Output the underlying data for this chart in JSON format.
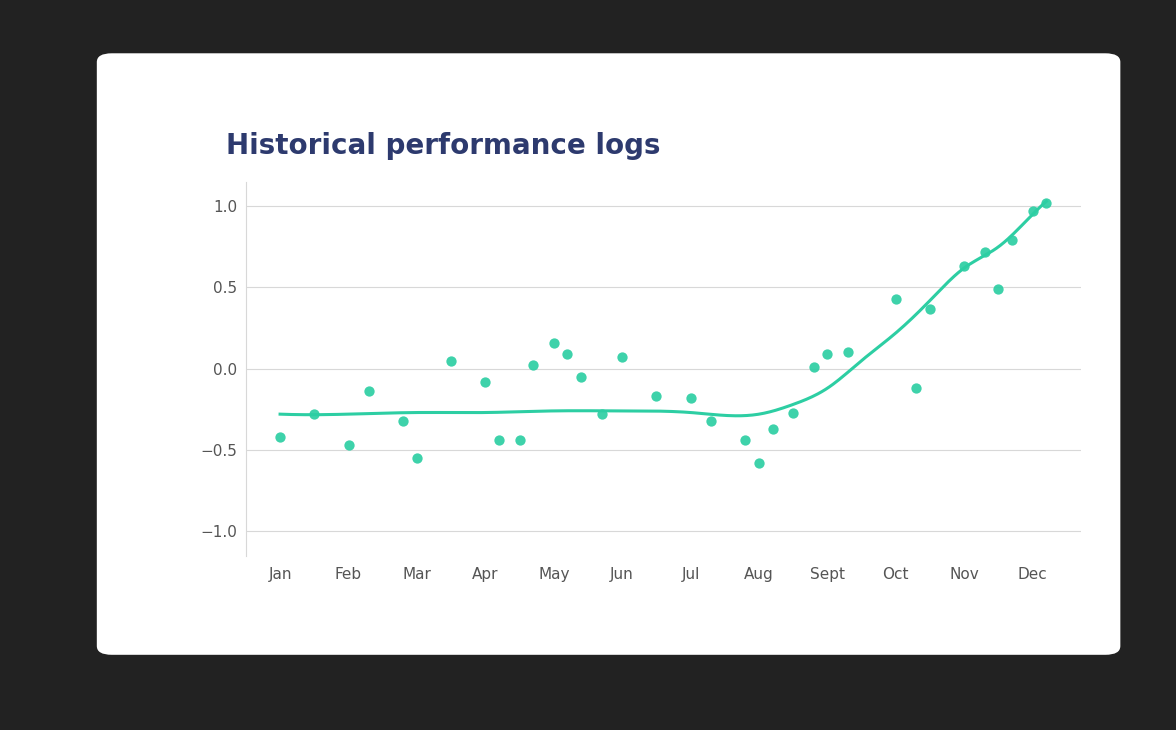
{
  "title": "Historical performance logs",
  "title_color": "#2d3a6e",
  "title_fontsize": 20,
  "title_fontweight": "bold",
  "background_outer": "#222222",
  "background_card": "#ffffff",
  "x_labels": [
    "Jan",
    "Feb",
    "Mar",
    "Apr",
    "May",
    "Jun",
    "Jul",
    "Aug",
    "Sept",
    "Oct",
    "Nov",
    "Dec"
  ],
  "x_positions": [
    1,
    2,
    3,
    4,
    5,
    6,
    7,
    8,
    9,
    10,
    11,
    12
  ],
  "scatter_points": [
    [
      1.0,
      -0.42
    ],
    [
      1.5,
      -0.28
    ],
    [
      2.0,
      -0.47
    ],
    [
      2.3,
      -0.14
    ],
    [
      2.8,
      -0.32
    ],
    [
      3.0,
      -0.55
    ],
    [
      3.5,
      0.05
    ],
    [
      4.0,
      -0.08
    ],
    [
      4.2,
      -0.44
    ],
    [
      4.5,
      -0.44
    ],
    [
      4.7,
      0.02
    ],
    [
      5.0,
      0.16
    ],
    [
      5.2,
      0.09
    ],
    [
      5.4,
      -0.05
    ],
    [
      5.7,
      -0.28
    ],
    [
      6.0,
      0.07
    ],
    [
      6.5,
      -0.17
    ],
    [
      7.0,
      -0.18
    ],
    [
      7.3,
      -0.32
    ],
    [
      7.8,
      -0.44
    ],
    [
      8.0,
      -0.58
    ],
    [
      8.2,
      -0.37
    ],
    [
      8.5,
      -0.27
    ],
    [
      8.8,
      0.01
    ],
    [
      9.0,
      0.09
    ],
    [
      9.3,
      0.1
    ],
    [
      10.0,
      0.43
    ],
    [
      10.3,
      -0.12
    ],
    [
      10.5,
      0.37
    ],
    [
      11.0,
      0.63
    ],
    [
      11.3,
      0.72
    ],
    [
      11.5,
      0.49
    ],
    [
      11.7,
      0.79
    ],
    [
      12.0,
      0.97
    ],
    [
      12.2,
      1.02
    ]
  ],
  "scatter_color": "#2dcea3",
  "scatter_size": 55,
  "line_color": "#2dcea3",
  "line_width": 2.2,
  "curve_control_x": [
    1.0,
    2.0,
    3.0,
    4.0,
    5.0,
    6.0,
    7.0,
    8.0,
    8.5,
    9.0,
    9.5,
    10.0,
    10.5,
    11.0,
    11.5,
    12.0,
    12.2
  ],
  "curve_control_y": [
    -0.28,
    -0.28,
    -0.27,
    -0.27,
    -0.26,
    -0.26,
    -0.27,
    -0.28,
    -0.22,
    -0.12,
    0.05,
    0.22,
    0.42,
    0.62,
    0.75,
    0.95,
    1.03
  ],
  "ylim": [
    -1.15,
    1.15
  ],
  "yticks": [
    -1.0,
    -0.5,
    0.0,
    0.5,
    1.0
  ],
  "grid_color": "#d8d8d8",
  "axis_tick_color": "#555555",
  "axis_tick_fontsize": 11
}
